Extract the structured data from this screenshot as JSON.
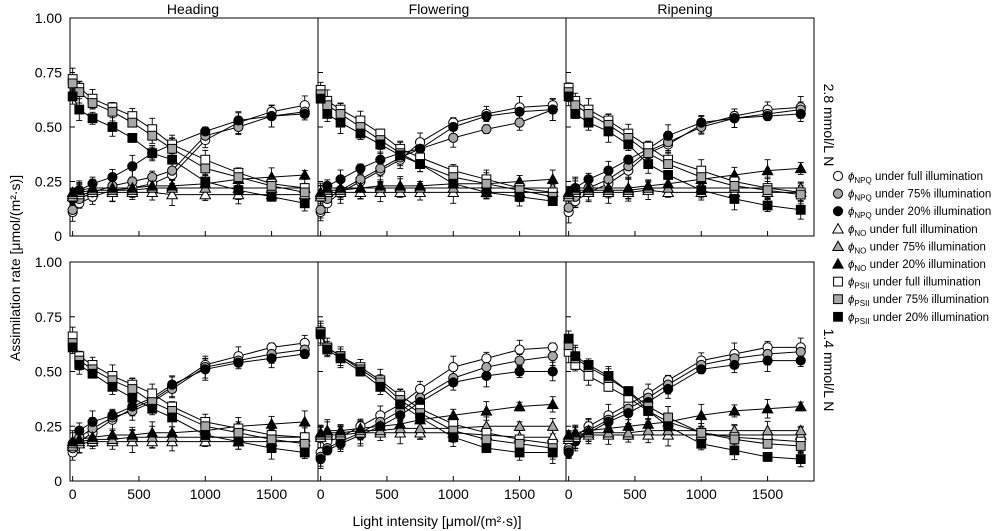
{
  "figure": {
    "ylabel": "Assimilation rate [μmol/(m²·s)]",
    "xlabel": "Light intensity [μmol/(m²·s)]",
    "columns": [
      "Heading",
      "Flowering",
      "Ripening"
    ],
    "rows": [
      "2.8 mmol/L N",
      "1.4 mmol/L N"
    ],
    "legend": [
      {
        "sym": "NPQ",
        "text": "under full illumination"
      },
      {
        "sym": "NPQ",
        "text": "under 75% illumination"
      },
      {
        "sym": "NPQ",
        "text": "under 20% illumination"
      },
      {
        "sym": "NO",
        "text": "under full illumination"
      },
      {
        "sym": "NO",
        "text": "under 75% illumination"
      },
      {
        "sym": "NO",
        "text": "under 20% illumination"
      },
      {
        "sym": "PSII",
        "text": "under full illumination"
      },
      {
        "sym": "PSII",
        "text": "under 75% illumination"
      },
      {
        "sym": "PSII",
        "text": "under 20% illumination"
      }
    ]
  },
  "colors": {
    "full": "#ffffff",
    "p75": "#a8a8a8",
    "p20": "#000000"
  },
  "chart_data": [
    {
      "type": "scatter",
      "title": "Heading",
      "row_label": "2.8 mmol/L N",
      "xlim": [
        -20,
        1850
      ],
      "ylim": [
        0,
        1.0
      ],
      "x": [
        0,
        50,
        150,
        300,
        450,
        600,
        750,
        1000,
        1250,
        1500,
        1750
      ],
      "series": [
        {
          "name": "NPQ_full",
          "values": [
            0.11,
            0.15,
            0.18,
            0.21,
            0.22,
            0.24,
            0.28,
            0.44,
            0.52,
            0.57,
            0.6
          ]
        },
        {
          "name": "NPQ_75",
          "values": [
            0.12,
            0.17,
            0.2,
            0.23,
            0.25,
            0.27,
            0.3,
            0.46,
            0.5,
            0.55,
            0.57
          ]
        },
        {
          "name": "NPQ_20",
          "values": [
            0.17,
            0.21,
            0.24,
            0.27,
            0.32,
            0.38,
            0.42,
            0.48,
            0.53,
            0.55,
            0.56
          ]
        },
        {
          "name": "NO_full",
          "values": [
            0.18,
            0.19,
            0.2,
            0.2,
            0.2,
            0.2,
            0.19,
            0.19,
            0.19,
            0.19,
            0.19
          ]
        },
        {
          "name": "NO_75",
          "values": [
            0.19,
            0.2,
            0.21,
            0.21,
            0.21,
            0.22,
            0.22,
            0.22,
            0.22,
            0.22,
            0.22
          ]
        },
        {
          "name": "NO_20",
          "values": [
            0.2,
            0.21,
            0.22,
            0.22,
            0.22,
            0.23,
            0.23,
            0.24,
            0.26,
            0.27,
            0.28
          ]
        },
        {
          "name": "PSII_full",
          "values": [
            0.72,
            0.68,
            0.63,
            0.59,
            0.55,
            0.49,
            0.42,
            0.35,
            0.29,
            0.24,
            0.22
          ]
        },
        {
          "name": "PSII_75",
          "values": [
            0.7,
            0.66,
            0.61,
            0.57,
            0.52,
            0.46,
            0.4,
            0.31,
            0.27,
            0.23,
            0.2
          ]
        },
        {
          "name": "PSII_20",
          "values": [
            0.64,
            0.58,
            0.54,
            0.5,
            0.45,
            0.38,
            0.35,
            0.25,
            0.21,
            0.18,
            0.15
          ]
        }
      ]
    },
    {
      "type": "scatter",
      "title": "Flowering",
      "row_label": "2.8 mmol/L N",
      "xlim": [
        -20,
        1850
      ],
      "ylim": [
        0,
        1.0
      ],
      "x": [
        0,
        50,
        150,
        300,
        450,
        600,
        750,
        1000,
        1250,
        1500,
        1750
      ],
      "series": [
        {
          "name": "NPQ_full",
          "values": [
            0.11,
            0.15,
            0.2,
            0.25,
            0.3,
            0.35,
            0.43,
            0.52,
            0.56,
            0.59,
            0.6
          ]
        },
        {
          "name": "NPQ_75",
          "values": [
            0.12,
            0.17,
            0.21,
            0.26,
            0.31,
            0.36,
            0.4,
            0.45,
            0.49,
            0.52,
            0.58
          ]
        },
        {
          "name": "NPQ_20",
          "values": [
            0.18,
            0.23,
            0.26,
            0.31,
            0.35,
            0.38,
            0.4,
            0.5,
            0.55,
            0.57,
            0.58
          ]
        },
        {
          "name": "NO_full",
          "values": [
            0.18,
            0.2,
            0.2,
            0.2,
            0.2,
            0.2,
            0.2,
            0.2,
            0.2,
            0.2,
            0.2
          ]
        },
        {
          "name": "NO_75",
          "values": [
            0.19,
            0.21,
            0.21,
            0.22,
            0.22,
            0.22,
            0.22,
            0.22,
            0.22,
            0.22,
            0.22
          ]
        },
        {
          "name": "NO_20",
          "values": [
            0.2,
            0.22,
            0.22,
            0.22,
            0.23,
            0.23,
            0.23,
            0.24,
            0.24,
            0.25,
            0.26
          ]
        },
        {
          "name": "PSII_full",
          "values": [
            0.67,
            0.62,
            0.58,
            0.53,
            0.47,
            0.4,
            0.36,
            0.3,
            0.26,
            0.22,
            0.2
          ]
        },
        {
          "name": "PSII_75",
          "values": [
            0.65,
            0.6,
            0.56,
            0.5,
            0.44,
            0.38,
            0.33,
            0.27,
            0.24,
            0.21,
            0.18
          ]
        },
        {
          "name": "PSII_20",
          "values": [
            0.63,
            0.56,
            0.52,
            0.47,
            0.42,
            0.37,
            0.33,
            0.24,
            0.2,
            0.18,
            0.16
          ]
        }
      ]
    },
    {
      "type": "scatter",
      "title": "Ripening",
      "row_label": "2.8 mmol/L N",
      "xlim": [
        -20,
        1850
      ],
      "ylim": [
        0,
        1.0
      ],
      "x": [
        0,
        50,
        150,
        300,
        450,
        600,
        750,
        1000,
        1250,
        1500,
        1750
      ],
      "series": [
        {
          "name": "NPQ_full",
          "values": [
            0.11,
            0.16,
            0.2,
            0.24,
            0.3,
            0.38,
            0.42,
            0.51,
            0.55,
            0.58,
            0.59
          ]
        },
        {
          "name": "NPQ_75",
          "values": [
            0.13,
            0.18,
            0.22,
            0.26,
            0.32,
            0.39,
            0.43,
            0.5,
            0.54,
            0.56,
            0.58
          ]
        },
        {
          "name": "NPQ_20",
          "values": [
            0.18,
            0.22,
            0.26,
            0.3,
            0.35,
            0.4,
            0.46,
            0.52,
            0.54,
            0.55,
            0.56
          ]
        },
        {
          "name": "NO_full",
          "values": [
            0.18,
            0.2,
            0.2,
            0.2,
            0.2,
            0.21,
            0.2,
            0.2,
            0.2,
            0.2,
            0.2
          ]
        },
        {
          "name": "NO_75",
          "values": [
            0.19,
            0.21,
            0.21,
            0.21,
            0.21,
            0.22,
            0.22,
            0.22,
            0.22,
            0.22,
            0.22
          ]
        },
        {
          "name": "NO_20",
          "values": [
            0.2,
            0.22,
            0.22,
            0.22,
            0.22,
            0.23,
            0.24,
            0.26,
            0.28,
            0.3,
            0.31
          ]
        },
        {
          "name": "PSII_full",
          "values": [
            0.68,
            0.62,
            0.58,
            0.53,
            0.47,
            0.41,
            0.35,
            0.3,
            0.25,
            0.22,
            0.2
          ]
        },
        {
          "name": "PSII_75",
          "values": [
            0.66,
            0.6,
            0.56,
            0.51,
            0.45,
            0.38,
            0.33,
            0.27,
            0.23,
            0.21,
            0.19
          ]
        },
        {
          "name": "PSII_20",
          "values": [
            0.64,
            0.56,
            0.52,
            0.48,
            0.42,
            0.33,
            0.28,
            0.21,
            0.17,
            0.14,
            0.12
          ]
        }
      ]
    },
    {
      "type": "scatter",
      "title": "Heading",
      "row_label": "1.4 mmol/L N",
      "xlim": [
        -20,
        1850
      ],
      "ylim": [
        0,
        1.0
      ],
      "x": [
        0,
        50,
        150,
        300,
        450,
        600,
        750,
        1000,
        1250,
        1500,
        1750
      ],
      "series": [
        {
          "name": "NPQ_full",
          "values": [
            0.13,
            0.18,
            0.22,
            0.28,
            0.33,
            0.37,
            0.43,
            0.53,
            0.57,
            0.61,
            0.63
          ]
        },
        {
          "name": "NPQ_75",
          "values": [
            0.15,
            0.2,
            0.24,
            0.29,
            0.32,
            0.36,
            0.42,
            0.52,
            0.55,
            0.58,
            0.6
          ]
        },
        {
          "name": "NPQ_20",
          "values": [
            0.17,
            0.23,
            0.27,
            0.3,
            0.34,
            0.38,
            0.44,
            0.51,
            0.54,
            0.56,
            0.58
          ]
        },
        {
          "name": "NO_full",
          "values": [
            0.16,
            0.17,
            0.18,
            0.18,
            0.18,
            0.18,
            0.18,
            0.18,
            0.18,
            0.18,
            0.18
          ]
        },
        {
          "name": "NO_75",
          "values": [
            0.17,
            0.18,
            0.19,
            0.19,
            0.2,
            0.2,
            0.2,
            0.2,
            0.2,
            0.2,
            0.2
          ]
        },
        {
          "name": "NO_20",
          "values": [
            0.18,
            0.19,
            0.2,
            0.21,
            0.21,
            0.22,
            0.22,
            0.23,
            0.25,
            0.26,
            0.27
          ]
        },
        {
          "name": "PSII_full",
          "values": [
            0.66,
            0.57,
            0.53,
            0.48,
            0.44,
            0.4,
            0.34,
            0.27,
            0.24,
            0.21,
            0.2
          ]
        },
        {
          "name": "PSII_75",
          "values": [
            0.63,
            0.55,
            0.51,
            0.46,
            0.42,
            0.36,
            0.32,
            0.25,
            0.22,
            0.19,
            0.17
          ]
        },
        {
          "name": "PSII_20",
          "values": [
            0.61,
            0.53,
            0.49,
            0.43,
            0.38,
            0.33,
            0.29,
            0.21,
            0.18,
            0.15,
            0.13
          ]
        }
      ]
    },
    {
      "type": "scatter",
      "title": "Flowering",
      "row_label": "1.4 mmol/L N",
      "xlim": [
        -20,
        1850
      ],
      "ylim": [
        0,
        1.0
      ],
      "x": [
        0,
        50,
        150,
        300,
        450,
        600,
        750,
        1000,
        1250,
        1500,
        1750
      ],
      "series": [
        {
          "name": "NPQ_full",
          "values": [
            0.13,
            0.18,
            0.2,
            0.25,
            0.3,
            0.35,
            0.42,
            0.52,
            0.56,
            0.6,
            0.61
          ]
        },
        {
          "name": "NPQ_75",
          "values": [
            0.11,
            0.15,
            0.18,
            0.22,
            0.27,
            0.32,
            0.38,
            0.47,
            0.52,
            0.55,
            0.57
          ]
        },
        {
          "name": "NPQ_20",
          "values": [
            0.1,
            0.14,
            0.17,
            0.21,
            0.25,
            0.3,
            0.36,
            0.45,
            0.48,
            0.5,
            0.5
          ]
        },
        {
          "name": "NO_full",
          "values": [
            0.2,
            0.21,
            0.21,
            0.22,
            0.22,
            0.22,
            0.22,
            0.22,
            0.21,
            0.2,
            0.2
          ]
        },
        {
          "name": "NO_75",
          "values": [
            0.21,
            0.22,
            0.22,
            0.23,
            0.23,
            0.24,
            0.24,
            0.24,
            0.25,
            0.25,
            0.25
          ]
        },
        {
          "name": "NO_20",
          "values": [
            0.22,
            0.23,
            0.23,
            0.24,
            0.25,
            0.26,
            0.28,
            0.3,
            0.32,
            0.34,
            0.35
          ]
        },
        {
          "name": "PSII_full",
          "values": [
            0.68,
            0.61,
            0.57,
            0.52,
            0.46,
            0.39,
            0.33,
            0.26,
            0.22,
            0.19,
            0.17
          ]
        },
        {
          "name": "PSII_75",
          "values": [
            0.68,
            0.61,
            0.57,
            0.51,
            0.45,
            0.37,
            0.31,
            0.23,
            0.19,
            0.17,
            0.15
          ]
        },
        {
          "name": "PSII_20",
          "values": [
            0.67,
            0.6,
            0.56,
            0.5,
            0.43,
            0.35,
            0.29,
            0.2,
            0.15,
            0.13,
            0.13
          ]
        }
      ]
    },
    {
      "type": "scatter",
      "title": "Ripening",
      "row_label": "1.4 mmol/L N",
      "xlim": [
        -20,
        1850
      ],
      "ylim": [
        0,
        1.0
      ],
      "x": [
        0,
        50,
        150,
        300,
        450,
        600,
        750,
        1000,
        1250,
        1500,
        1750
      ],
      "series": [
        {
          "name": "NPQ_full",
          "values": [
            0.15,
            0.2,
            0.25,
            0.3,
            0.35,
            0.4,
            0.46,
            0.55,
            0.58,
            0.61,
            0.61
          ]
        },
        {
          "name": "NPQ_75",
          "values": [
            0.14,
            0.19,
            0.23,
            0.28,
            0.33,
            0.38,
            0.44,
            0.53,
            0.56,
            0.58,
            0.59
          ]
        },
        {
          "name": "NPQ_20",
          "values": [
            0.13,
            0.18,
            0.22,
            0.27,
            0.31,
            0.36,
            0.42,
            0.51,
            0.53,
            0.55,
            0.55
          ]
        },
        {
          "name": "NO_full",
          "values": [
            0.19,
            0.2,
            0.21,
            0.21,
            0.21,
            0.21,
            0.21,
            0.21,
            0.21,
            0.21,
            0.21
          ]
        },
        {
          "name": "NO_75",
          "values": [
            0.2,
            0.21,
            0.22,
            0.22,
            0.22,
            0.23,
            0.23,
            0.23,
            0.23,
            0.23,
            0.23
          ]
        },
        {
          "name": "NO_20",
          "values": [
            0.21,
            0.22,
            0.23,
            0.24,
            0.25,
            0.26,
            0.27,
            0.3,
            0.32,
            0.33,
            0.34
          ]
        },
        {
          "name": "PSII_full",
          "values": [
            0.59,
            0.53,
            0.48,
            0.43,
            0.38,
            0.32,
            0.27,
            0.22,
            0.2,
            0.19,
            0.18
          ]
        },
        {
          "name": "PSII_75",
          "values": [
            0.62,
            0.56,
            0.52,
            0.47,
            0.41,
            0.34,
            0.29,
            0.22,
            0.19,
            0.17,
            0.16
          ]
        },
        {
          "name": "PSII_20",
          "values": [
            0.65,
            0.57,
            0.53,
            0.48,
            0.41,
            0.32,
            0.25,
            0.17,
            0.14,
            0.11,
            0.1
          ]
        }
      ]
    }
  ]
}
